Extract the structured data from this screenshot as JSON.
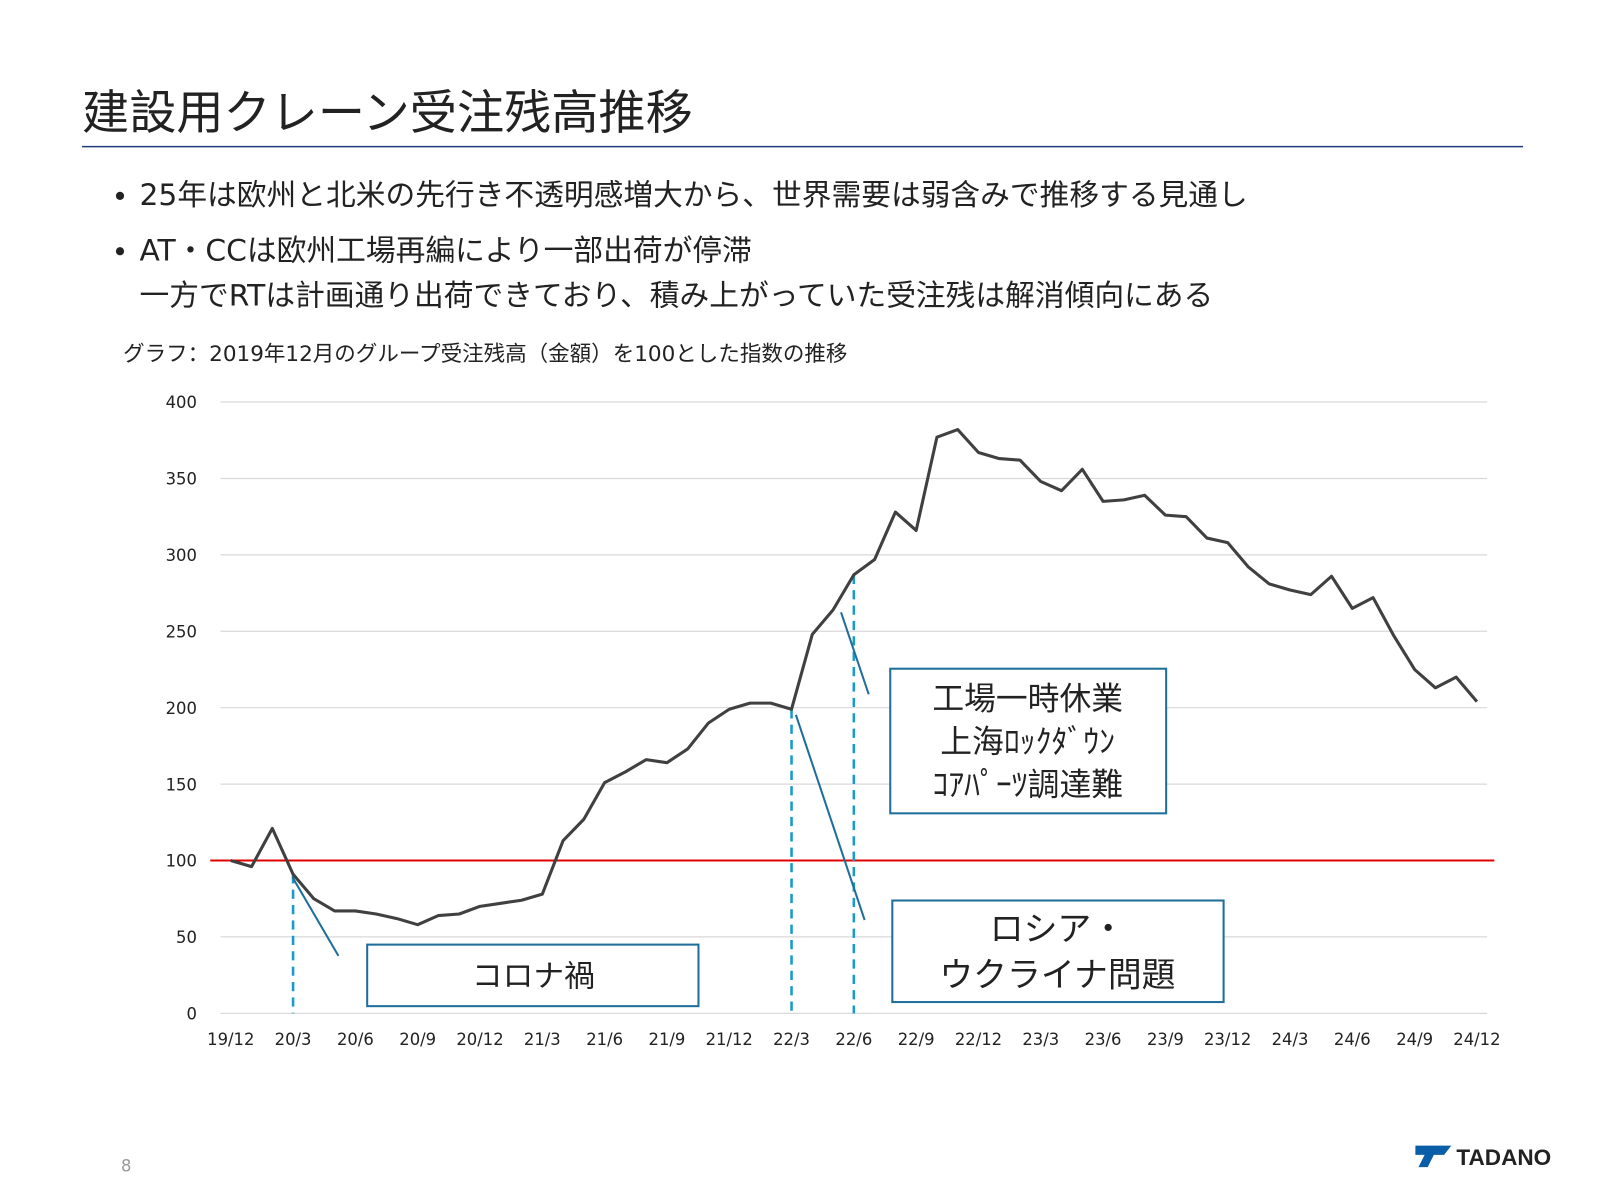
{
  "slide": {
    "title": "建設用クレーン受注残高推移",
    "bullets": [
      [
        "25年は欧州と北米の先行き不透明感増大から、世界需要は弱含みで推移する見通し"
      ],
      [
        "AT・CCは欧州工場再編により一部出荷が停滞",
        "一方でRTは計画通り出荷できており、積み上がっていた受注残は解消傾向にある"
      ]
    ],
    "page_number": "8",
    "logo": "TADANO"
  },
  "chart_data": {
    "type": "line",
    "title": "グラフ：2019年12月のグループ受注残高（金額）を100とした指数の推移",
    "categories": [
      "19/12",
      null,
      null,
      "20/3",
      null,
      null,
      "20/6",
      null,
      null,
      "20/9",
      null,
      null,
      "20/12",
      null,
      null,
      "21/3",
      null,
      null,
      "21/6",
      null,
      null,
      "21/9",
      null,
      null,
      "21/12",
      null,
      null,
      "22/3",
      null,
      null,
      "22/6",
      null,
      null,
      "22/9",
      null,
      null,
      "22/12",
      null,
      null,
      "23/3",
      null,
      null,
      "23/6",
      null,
      null,
      "23/9",
      null,
      null,
      "23/12",
      null,
      null,
      "24/3",
      null,
      null,
      "24/6",
      null,
      null,
      "24/9",
      null,
      null,
      "24/12"
    ],
    "series": [
      {
        "name": "受注残高指数",
        "color": "#404040",
        "values": [
          100,
          96,
          121,
          91,
          75,
          67,
          67,
          65,
          62,
          58,
          64,
          65,
          70,
          72,
          74,
          78,
          113,
          127,
          151,
          158,
          166,
          164,
          173,
          190,
          199,
          203,
          203,
          199,
          248,
          264,
          287,
          297,
          328,
          316,
          377,
          382,
          367,
          363,
          362,
          348,
          342,
          356,
          335,
          336,
          339,
          326,
          325,
          311,
          308,
          292,
          281,
          277,
          274,
          286,
          265,
          272,
          247,
          225,
          213,
          220,
          204
        ]
      }
    ],
    "reference_line": {
      "value": 100,
      "color": "#e00000"
    },
    "ylim": [
      0,
      400
    ],
    "yticks": [
      0,
      50,
      100,
      150,
      200,
      250,
      300,
      350,
      400
    ],
    "grid": true,
    "annotations": [
      {
        "lines": [
          "コロナ禍"
        ]
      },
      {
        "lines": [
          "工場一時休業",
          "上海ﾛｯｸﾀﾞｳﾝ",
          "ｺｱﾊﾟｰﾂ調達難"
        ]
      },
      {
        "lines": [
          "ロシア・",
          "ウクライナ問題"
        ]
      }
    ]
  }
}
